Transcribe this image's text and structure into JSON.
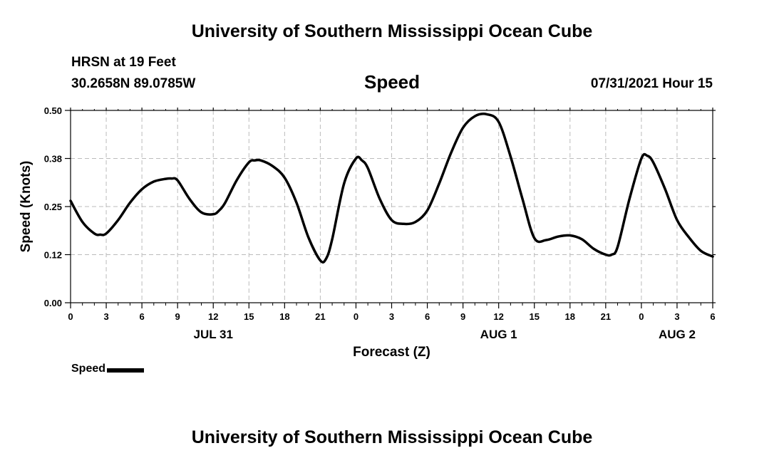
{
  "header": {
    "title": "University of Southern Mississippi Ocean Cube",
    "station": "HRSN at 19 Feet",
    "coords": "30.2658N  89.0785W",
    "datetime": "07/31/2021 Hour 15"
  },
  "footer": {
    "title": "University of Southern Mississippi Ocean Cube"
  },
  "legend": {
    "label": "Speed",
    "color": "#000000"
  },
  "chart_data": {
    "type": "line",
    "title": "Speed",
    "xlabel": "Forecast (Z)",
    "ylabel": "Speed (Knots)",
    "ylim": [
      0,
      0.5
    ],
    "xlim": [
      0,
      54
    ],
    "x_unit": "hours from 07/31/2021 00Z",
    "grid": true,
    "legend_position": "bottom-left",
    "yticks": [
      {
        "value": 0.0,
        "label": "0.00"
      },
      {
        "value": 0.125,
        "label": "0.12"
      },
      {
        "value": 0.25,
        "label": "0.25"
      },
      {
        "value": 0.375,
        "label": "0.38"
      },
      {
        "value": 0.5,
        "label": "0.50"
      }
    ],
    "xticks": [
      {
        "value": 0,
        "label": "0"
      },
      {
        "value": 3,
        "label": "3"
      },
      {
        "value": 6,
        "label": "6"
      },
      {
        "value": 9,
        "label": "9"
      },
      {
        "value": 12,
        "label": "12"
      },
      {
        "value": 15,
        "label": "15"
      },
      {
        "value": 18,
        "label": "18"
      },
      {
        "value": 21,
        "label": "21"
      },
      {
        "value": 24,
        "label": "0"
      },
      {
        "value": 27,
        "label": "3"
      },
      {
        "value": 30,
        "label": "6"
      },
      {
        "value": 33,
        "label": "9"
      },
      {
        "value": 36,
        "label": "12"
      },
      {
        "value": 39,
        "label": "15"
      },
      {
        "value": 42,
        "label": "18"
      },
      {
        "value": 45,
        "label": "21"
      },
      {
        "value": 48,
        "label": "0"
      },
      {
        "value": 51,
        "label": "3"
      },
      {
        "value": 54,
        "label": "6"
      }
    ],
    "date_labels": [
      {
        "value": 12,
        "label": "JUL 31"
      },
      {
        "value": 36,
        "label": "AUG 1"
      },
      {
        "value": 51,
        "label": "AUG 2"
      }
    ],
    "series": [
      {
        "name": "Speed",
        "color": "#000000",
        "x": [
          0,
          1,
          2,
          2.5,
          3,
          4,
          5,
          6,
          7,
          8,
          8.5,
          9,
          10,
          11,
          12,
          12.5,
          13,
          14,
          15,
          15.5,
          16,
          17,
          18,
          19,
          20,
          21,
          21.5,
          22,
          23,
          24,
          24.5,
          25,
          26,
          27,
          28,
          29,
          30,
          31,
          32,
          33,
          34,
          35,
          36,
          37,
          38,
          39,
          40,
          41,
          42,
          43,
          44,
          45,
          45.5,
          46,
          47,
          48,
          48.5,
          49,
          50,
          51,
          52,
          53,
          54
        ],
        "y": [
          0.265,
          0.21,
          0.18,
          0.177,
          0.18,
          0.215,
          0.26,
          0.295,
          0.315,
          0.322,
          0.323,
          0.318,
          0.27,
          0.235,
          0.23,
          0.24,
          0.26,
          0.32,
          0.365,
          0.37,
          0.37,
          0.355,
          0.325,
          0.26,
          0.17,
          0.11,
          0.115,
          0.165,
          0.31,
          0.375,
          0.37,
          0.35,
          0.27,
          0.215,
          0.205,
          0.21,
          0.24,
          0.31,
          0.39,
          0.455,
          0.485,
          0.49,
          0.47,
          0.38,
          0.27,
          0.168,
          0.163,
          0.172,
          0.175,
          0.165,
          0.14,
          0.125,
          0.125,
          0.145,
          0.27,
          0.375,
          0.382,
          0.365,
          0.295,
          0.215,
          0.17,
          0.135,
          0.12
        ]
      }
    ]
  }
}
